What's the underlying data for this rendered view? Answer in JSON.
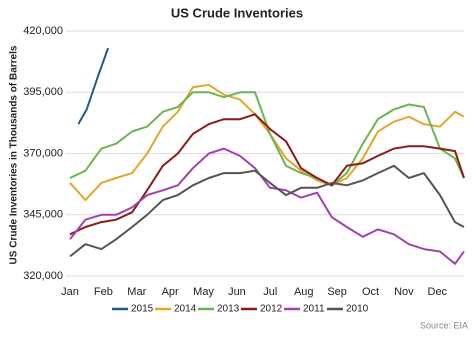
{
  "chart_data": {
    "type": "line",
    "title": "US Crude Inventories",
    "y_label": "US Crude Inventories in Thousands of Barrels",
    "source": "Source: EIA",
    "x": [
      0,
      0.46,
      0.94,
      1.38,
      1.86,
      2.31,
      2.78,
      3.23,
      3.68,
      4.16,
      4.61,
      5.09,
      5.54,
      5.99,
      6.47,
      6.92,
      7.4,
      7.84,
      8.29,
      8.77,
      9.22,
      9.7,
      10.15,
      10.6,
      11.08,
      11.53,
      11.8
    ],
    "xlim": [
      0,
      11.8
    ],
    "xticks": [
      {
        "value": 0,
        "label": "Jan"
      },
      {
        "value": 1,
        "label": "Feb"
      },
      {
        "value": 2,
        "label": "Mar"
      },
      {
        "value": 3,
        "label": "Apr"
      },
      {
        "value": 4,
        "label": "May"
      },
      {
        "value": 5,
        "label": "Jun"
      },
      {
        "value": 6,
        "label": "Jul"
      },
      {
        "value": 7,
        "label": "Aug"
      },
      {
        "value": 8,
        "label": "Sep"
      },
      {
        "value": 9,
        "label": "Oct"
      },
      {
        "value": 10,
        "label": "Nov"
      },
      {
        "value": 11,
        "label": "Dec"
      }
    ],
    "ylim": [
      320000,
      420000
    ],
    "yticks": [
      {
        "value": 320000,
        "label": "320,000"
      },
      {
        "value": 345000,
        "label": "345,000"
      },
      {
        "value": 370000,
        "label": "370,000"
      },
      {
        "value": 395000,
        "label": "395,000"
      },
      {
        "value": 420000,
        "label": "420,000"
      }
    ],
    "grid": true,
    "series": [
      {
        "name": "2015",
        "color": "#1f5c8c",
        "x": [
          0.25,
          0.5,
          0.85,
          1.14
        ],
        "values": [
          382000,
          388000,
          402000,
          413000
        ]
      },
      {
        "name": "2014",
        "color": "#e3a62f",
        "values": [
          358000,
          351000,
          358000,
          360000,
          362000,
          370000,
          381000,
          387000,
          397000,
          398000,
          394000,
          392000,
          386000,
          378000,
          368000,
          363000,
          359000,
          357000,
          360000,
          368000,
          379000,
          383000,
          385000,
          382000,
          381000,
          387000,
          385000
        ]
      },
      {
        "name": "2013",
        "color": "#6db552",
        "values": [
          360000,
          363000,
          372000,
          374000,
          379000,
          381000,
          387000,
          389000,
          395000,
          395000,
          393000,
          395000,
          395000,
          378000,
          365000,
          362000,
          360000,
          357000,
          362000,
          374000,
          384000,
          388000,
          390000,
          389000,
          372000,
          368000,
          360000
        ]
      },
      {
        "name": "2012",
        "color": "#8c1c1c",
        "values": [
          337000,
          340000,
          342000,
          343000,
          346000,
          355000,
          365000,
          370000,
          378000,
          382000,
          384000,
          384000,
          386000,
          380000,
          375000,
          364000,
          360000,
          357000,
          365000,
          366000,
          369000,
          372000,
          373000,
          373000,
          372000,
          371000,
          360000
        ]
      },
      {
        "name": "2011",
        "color": "#a340b3",
        "values": [
          335000,
          343000,
          345000,
          345000,
          348000,
          353000,
          355000,
          357000,
          364000,
          370000,
          372000,
          369000,
          364000,
          356000,
          355000,
          352000,
          354000,
          344000,
          340000,
          336000,
          339000,
          337000,
          333000,
          331000,
          330000,
          325000,
          330000
        ]
      },
      {
        "name": "2010",
        "color": "#555555",
        "values": [
          328000,
          333000,
          331000,
          335000,
          340000,
          345000,
          351000,
          353000,
          357000,
          360000,
          362000,
          362000,
          363000,
          358000,
          353000,
          356000,
          356000,
          358000,
          357000,
          359000,
          362000,
          365000,
          360000,
          362000,
          353000,
          342000,
          340000
        ]
      }
    ]
  }
}
